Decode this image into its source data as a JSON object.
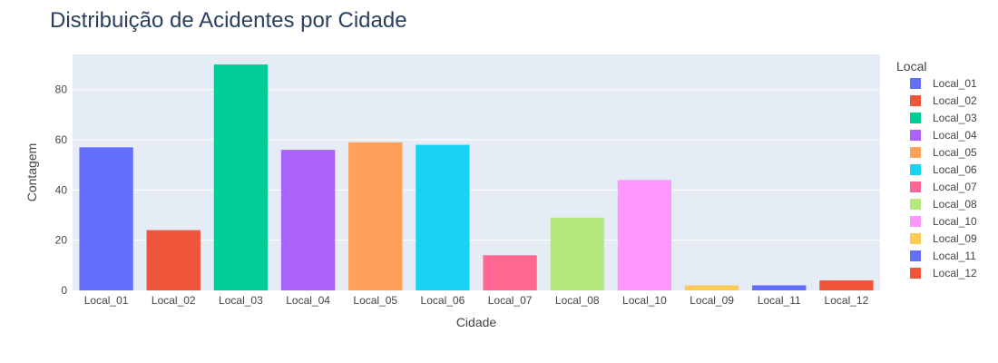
{
  "chart_data": {
    "type": "bar",
    "title": "Distribuição de Acidentes por Cidade",
    "xlabel": "Cidade",
    "ylabel": "Contagem",
    "ylim": [
      0,
      94
    ],
    "yticks": [
      0,
      20,
      40,
      60,
      80
    ],
    "grid": true,
    "legend_title": "Local",
    "legend_position": "right",
    "categories": [
      "Local_01",
      "Local_02",
      "Local_03",
      "Local_04",
      "Local_05",
      "Local_06",
      "Local_07",
      "Local_08",
      "Local_10",
      "Local_09",
      "Local_11",
      "Local_12"
    ],
    "series": [
      {
        "name": "Local_01",
        "category": "Local_01",
        "value": 57,
        "color": "#636efa"
      },
      {
        "name": "Local_02",
        "category": "Local_02",
        "value": 24,
        "color": "#EF553B"
      },
      {
        "name": "Local_03",
        "category": "Local_03",
        "value": 90,
        "color": "#00cc96"
      },
      {
        "name": "Local_04",
        "category": "Local_04",
        "value": 56,
        "color": "#ab63fa"
      },
      {
        "name": "Local_05",
        "category": "Local_05",
        "value": 59,
        "color": "#FFA15A"
      },
      {
        "name": "Local_06",
        "category": "Local_06",
        "value": 58,
        "color": "#19d3f3"
      },
      {
        "name": "Local_07",
        "category": "Local_07",
        "value": 14,
        "color": "#FF6692"
      },
      {
        "name": "Local_08",
        "category": "Local_08",
        "value": 29,
        "color": "#B6E880"
      },
      {
        "name": "Local_10",
        "category": "Local_10",
        "value": 44,
        "color": "#FF97FF"
      },
      {
        "name": "Local_09",
        "category": "Local_09",
        "value": 2,
        "color": "#FECB52"
      },
      {
        "name": "Local_11",
        "category": "Local_11",
        "value": 2,
        "color": "#636efa"
      },
      {
        "name": "Local_12",
        "category": "Local_12",
        "value": 4,
        "color": "#EF553B"
      }
    ],
    "colors": {
      "plot_background": "#e5ecf6",
      "gridline": "#ffffff"
    }
  }
}
